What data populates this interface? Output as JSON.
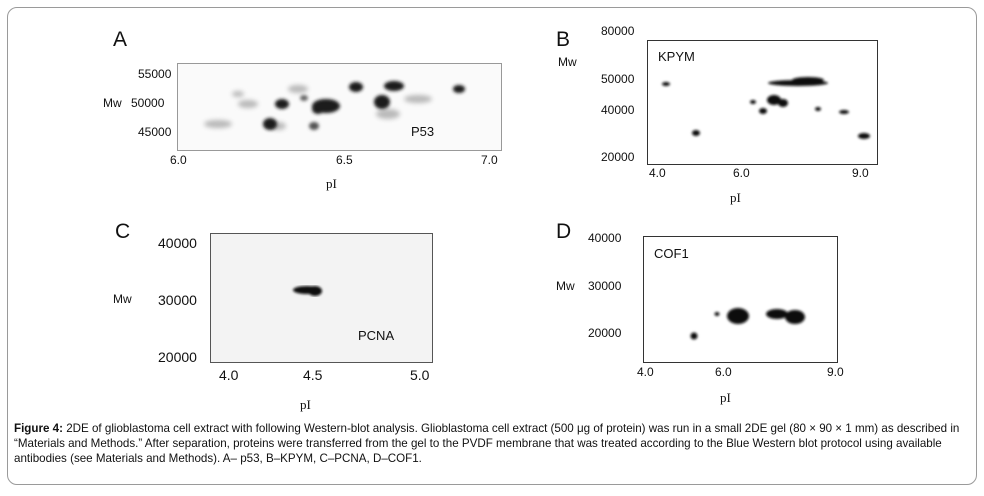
{
  "figure": {
    "caption_label": "Figure 4:",
    "caption_text": "2DE of glioblastoma cell extract with following Western-blot analysis. Glioblastoma cell extract (500 μg of protein) was run in a small 2DE gel (80 × 90 × 1 mm) as described in “Materials and Methods.” After separation, proteins were transferred from the gel to the PVDF membrane that was treated according to the Blue Western blot protocol using available antibodies (see Materials and Methods). A– p53, B–KPYM, C–PCNA, D–COF1."
  },
  "panels": [
    {
      "letter": "A",
      "protein": "P53",
      "ylabel": "Mw",
      "xlabel": "pI",
      "y_ticks": [
        "55000",
        "50000",
        "45000"
      ],
      "x_ticks": [
        "6.0",
        "6.5",
        "7.0"
      ]
    },
    {
      "letter": "B",
      "protein": "KPYM",
      "ylabel": "Mw",
      "xlabel": "pI",
      "y_ticks": [
        "80000",
        "50000",
        "40000",
        "20000"
      ],
      "x_ticks": [
        "4.0",
        "6.0",
        "9.0"
      ]
    },
    {
      "letter": "C",
      "protein": "PCNA",
      "ylabel": "Mw",
      "xlabel": "pI",
      "y_ticks": [
        "40000",
        "30000",
        "20000"
      ],
      "x_ticks": [
        "4.0",
        "4.5",
        "5.0"
      ]
    },
    {
      "letter": "D",
      "protein": "COF1",
      "ylabel": "Mw",
      "xlabel": "pI",
      "y_ticks": [
        "40000",
        "30000",
        "20000"
      ],
      "x_ticks": [
        "4.0",
        "6.0",
        "9.0"
      ]
    }
  ]
}
